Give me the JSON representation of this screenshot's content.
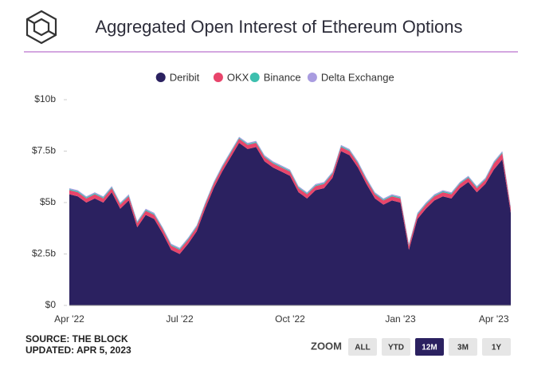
{
  "chart_data": {
    "type": "stacked-area",
    "title": "Aggregated Open Interest of Ethereum Options",
    "source": "SOURCE: THE BLOCK",
    "updated": "UPDATED: APR 5, 2023",
    "zoom_label": "ZOOM",
    "zoom_buttons": [
      "ALL",
      "YTD",
      "12M",
      "3M",
      "1Y"
    ],
    "zoom_selected": 2,
    "categories": [
      "Apr '22",
      null,
      null,
      null,
      null,
      null,
      null,
      null,
      null,
      null,
      null,
      null,
      null,
      "Jul '22",
      null,
      null,
      null,
      null,
      null,
      null,
      null,
      null,
      null,
      null,
      null,
      null,
      "Oct '22",
      null,
      null,
      null,
      null,
      null,
      null,
      null,
      null,
      null,
      null,
      null,
      null,
      "Jan '23",
      null,
      null,
      null,
      null,
      null,
      null,
      null,
      null,
      null,
      null,
      "Apr '23",
      null,
      null
    ],
    "series": [
      {
        "name": "Deribit",
        "color": "#2b2160",
        "values": [
          5.4,
          5.3,
          5.0,
          5.2,
          5.0,
          5.5,
          4.7,
          5.1,
          3.8,
          4.4,
          4.2,
          3.5,
          2.7,
          2.5,
          3.0,
          3.6,
          4.7,
          5.7,
          6.5,
          7.2,
          7.9,
          7.6,
          7.7,
          7.0,
          6.7,
          6.5,
          6.3,
          5.5,
          5.2,
          5.6,
          5.7,
          6.2,
          7.5,
          7.3,
          6.7,
          5.9,
          5.2,
          4.9,
          5.1,
          5.0,
          2.7,
          4.2,
          4.7,
          5.1,
          5.3,
          5.2,
          5.7,
          6.0,
          5.5,
          5.9,
          6.6,
          7.1,
          4.5
        ]
      },
      {
        "name": "OKX",
        "color": "#e8456b",
        "values": [
          0.2,
          0.2,
          0.2,
          0.2,
          0.2,
          0.2,
          0.2,
          0.2,
          0.2,
          0.2,
          0.2,
          0.2,
          0.2,
          0.2,
          0.2,
          0.2,
          0.2,
          0.2,
          0.2,
          0.2,
          0.2,
          0.2,
          0.2,
          0.2,
          0.2,
          0.2,
          0.2,
          0.2,
          0.2,
          0.2,
          0.2,
          0.2,
          0.2,
          0.2,
          0.2,
          0.2,
          0.2,
          0.2,
          0.2,
          0.2,
          0.2,
          0.2,
          0.2,
          0.2,
          0.2,
          0.2,
          0.2,
          0.2,
          0.2,
          0.2,
          0.3,
          0.3,
          0.2
        ]
      },
      {
        "name": "Binance",
        "color": "#3dbfae",
        "values": [
          0.05,
          0.05,
          0.05,
          0.05,
          0.05,
          0.05,
          0.05,
          0.05,
          0.05,
          0.05,
          0.05,
          0.05,
          0.05,
          0.05,
          0.05,
          0.05,
          0.05,
          0.05,
          0.05,
          0.05,
          0.05,
          0.05,
          0.05,
          0.05,
          0.05,
          0.05,
          0.05,
          0.05,
          0.05,
          0.05,
          0.05,
          0.05,
          0.05,
          0.05,
          0.05,
          0.05,
          0.05,
          0.05,
          0.05,
          0.05,
          0.05,
          0.05,
          0.05,
          0.05,
          0.05,
          0.05,
          0.05,
          0.05,
          0.05,
          0.05,
          0.05,
          0.05,
          0.05
        ]
      },
      {
        "name": "Delta Exchange",
        "color": "#a99ce0",
        "values": [
          0.05,
          0.05,
          0.05,
          0.05,
          0.05,
          0.05,
          0.05,
          0.05,
          0.05,
          0.05,
          0.05,
          0.05,
          0.05,
          0.05,
          0.05,
          0.05,
          0.05,
          0.05,
          0.05,
          0.05,
          0.05,
          0.05,
          0.05,
          0.05,
          0.05,
          0.05,
          0.05,
          0.05,
          0.05,
          0.05,
          0.05,
          0.05,
          0.05,
          0.05,
          0.05,
          0.05,
          0.05,
          0.05,
          0.05,
          0.05,
          0.05,
          0.05,
          0.05,
          0.05,
          0.05,
          0.05,
          0.05,
          0.05,
          0.05,
          0.05,
          0.05,
          0.05,
          0.05
        ]
      }
    ],
    "ylim": [
      0,
      10
    ],
    "yticks": [
      {
        "value": 0,
        "label": "$0"
      },
      {
        "value": 2.5,
        "label": "$2.5b"
      },
      {
        "value": 5,
        "label": "$5b"
      },
      {
        "value": 7.5,
        "label": "$7.5b"
      },
      {
        "value": 10,
        "label": "$10b"
      }
    ],
    "grid": false,
    "legend": "top"
  }
}
